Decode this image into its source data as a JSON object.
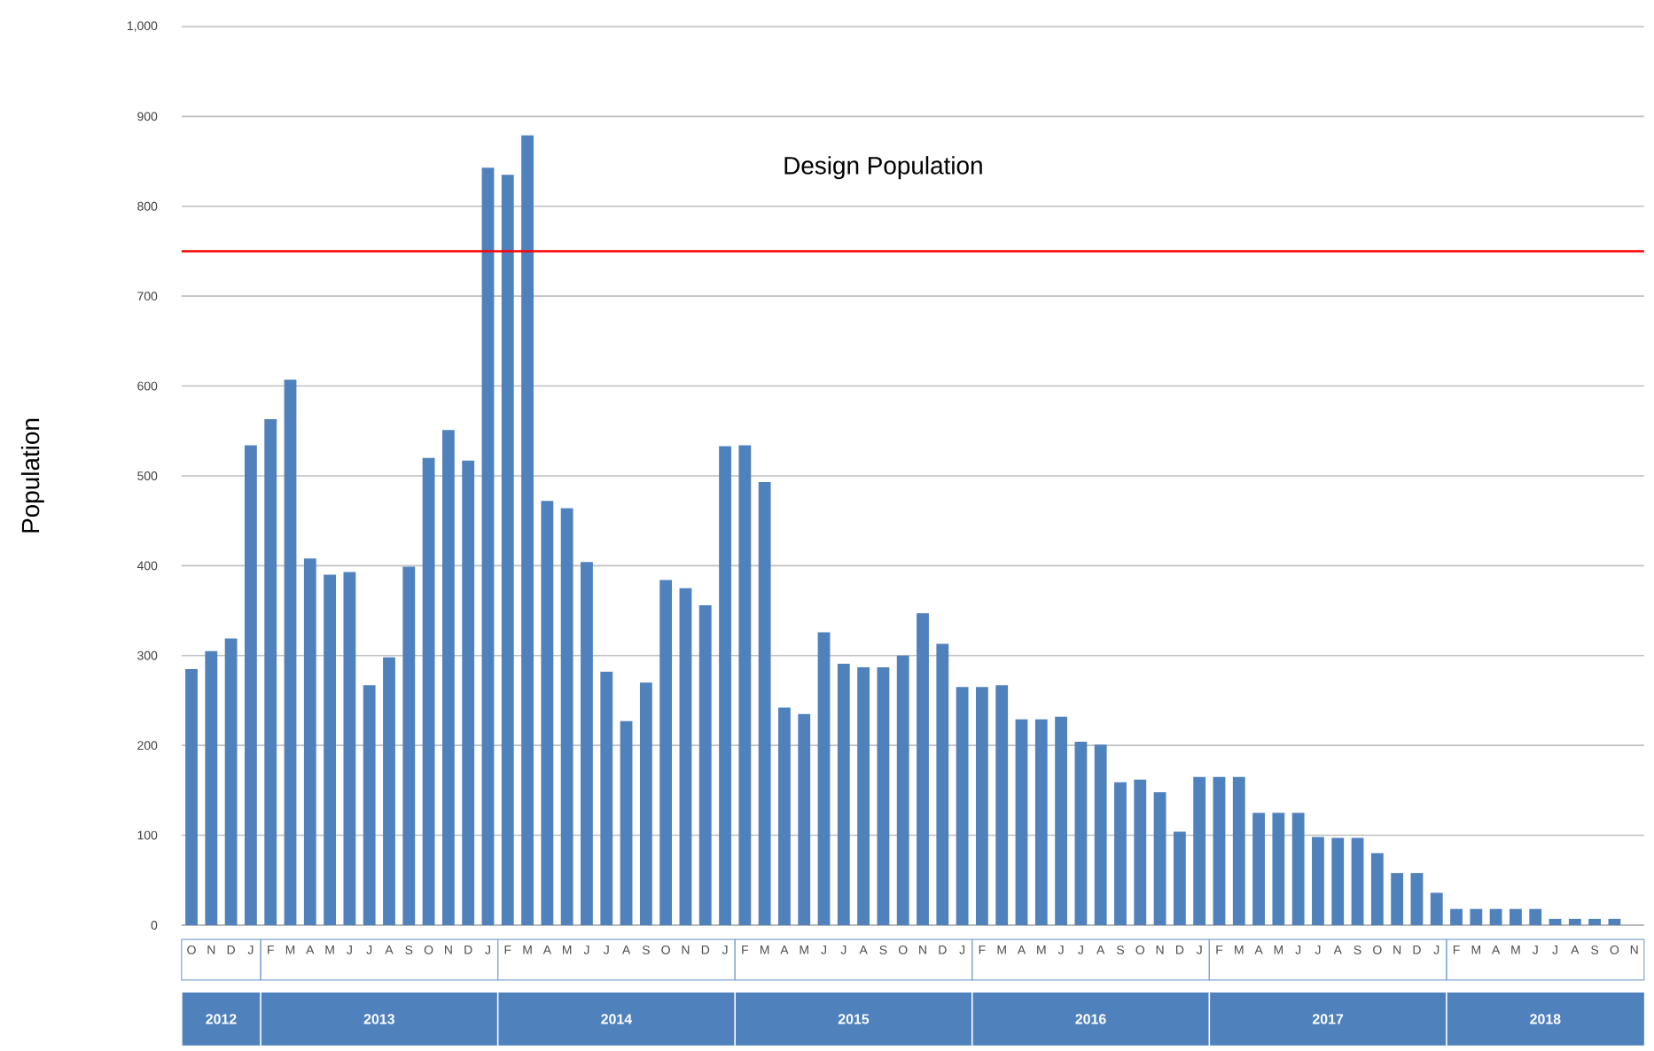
{
  "chart_data": {
    "type": "bar",
    "ylabel": "Population",
    "categories": [
      "O",
      "N",
      "D",
      "J",
      "F",
      "M",
      "A",
      "M",
      "J",
      "J",
      "A",
      "S",
      "O",
      "N",
      "D",
      "J",
      "F",
      "M",
      "A",
      "M",
      "J",
      "J",
      "A",
      "S",
      "O",
      "N",
      "D",
      "J",
      "F",
      "M",
      "A",
      "M",
      "J",
      "J",
      "A",
      "S",
      "O",
      "N",
      "D",
      "J",
      "F",
      "M",
      "A",
      "M",
      "J",
      "J",
      "A",
      "S",
      "O",
      "N",
      "D",
      "J",
      "F",
      "M",
      "A",
      "M",
      "J",
      "J",
      "A",
      "S",
      "O",
      "N",
      "D",
      "J",
      "F",
      "M",
      "A",
      "M",
      "J",
      "J",
      "A",
      "S",
      "O",
      "N"
    ],
    "values": [
      285,
      305,
      319,
      534,
      563,
      607,
      408,
      390,
      393,
      267,
      298,
      399,
      520,
      551,
      517,
      843,
      835,
      879,
      472,
      464,
      404,
      282,
      227,
      270,
      384,
      375,
      356,
      533,
      534,
      493,
      242,
      235,
      326,
      291,
      287,
      287,
      300,
      347,
      313,
      265,
      265,
      267,
      229,
      229,
      232,
      204,
      201,
      159,
      162,
      148,
      104,
      165,
      165,
      165,
      125,
      125,
      125,
      98,
      97,
      97,
      80,
      58,
      58,
      36,
      18,
      18,
      18,
      18,
      18,
      7,
      7,
      7,
      7,
      0
    ],
    "color": "#4f81bd",
    "ylim": [
      0,
      1000
    ],
    "yticks": [
      0,
      100,
      200,
      300,
      400,
      500,
      600,
      700,
      800,
      900,
      {
        "value": 1000,
        "label": "1,000"
      }
    ],
    "grid": "y",
    "ref_lines": [
      {
        "axis": "y",
        "value": 750,
        "label": "Design Population",
        "color": "#ff0000"
      }
    ],
    "annotations": [
      "2012",
      "2013",
      "2014",
      "2015",
      "2016",
      "2017",
      "2018"
    ]
  }
}
